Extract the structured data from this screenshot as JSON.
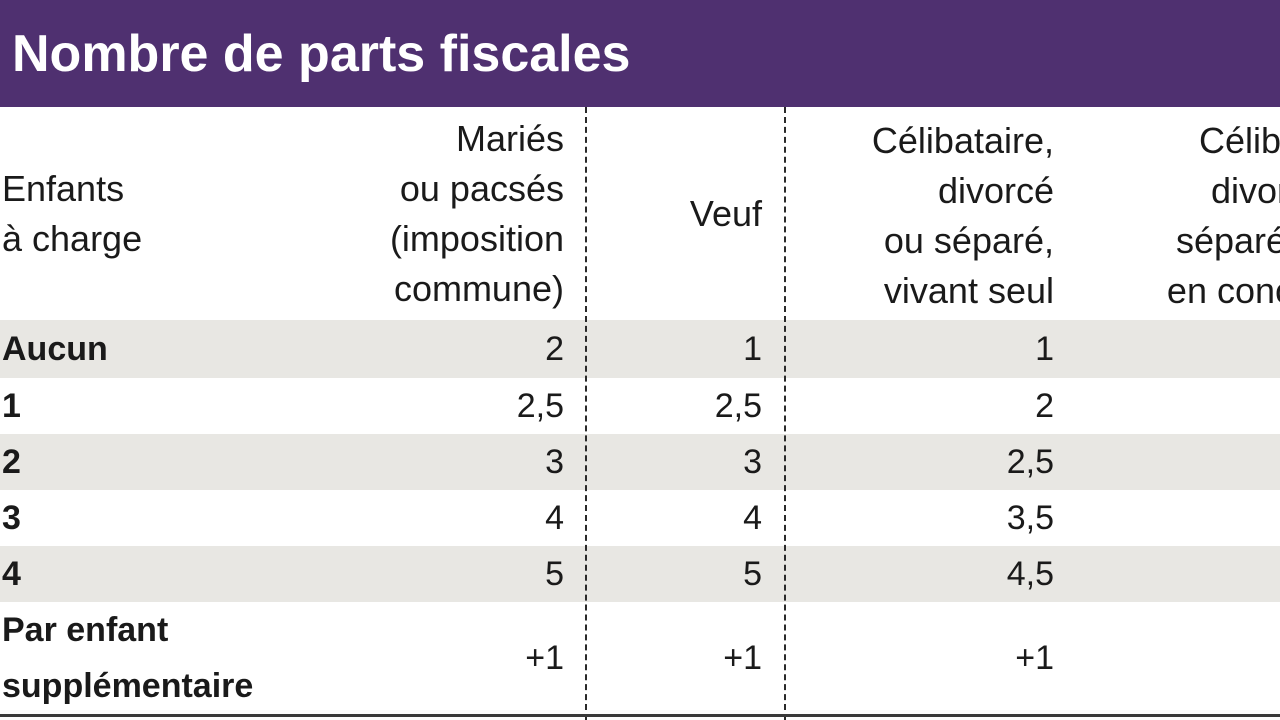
{
  "title": "Nombre de parts fiscales",
  "headers": {
    "enfants": [
      "Enfants",
      "à charge"
    ],
    "maries": [
      "Mariés",
      "ou pacsés",
      "(imposition",
      "commune)"
    ],
    "veuf": [
      "Veuf"
    ],
    "celibataire": [
      "Célibataire,",
      "divorcé",
      "ou séparé,",
      "vivant seul"
    ],
    "concubinage": [
      "Céliba",
      "divor",
      "séparé, v",
      "en concub"
    ]
  },
  "rows": [
    {
      "label": "Aucun",
      "maries": "2",
      "veuf": "1",
      "celibataire": "1"
    },
    {
      "label": "1",
      "maries": "2,5",
      "veuf": "2,5",
      "celibataire": "2"
    },
    {
      "label": "2",
      "maries": "3",
      "veuf": "3",
      "celibataire": "2,5"
    },
    {
      "label": "3",
      "maries": "4",
      "veuf": "4",
      "celibataire": "3,5"
    },
    {
      "label": "4",
      "maries": "5",
      "veuf": "5",
      "celibataire": "4,5"
    },
    {
      "label_lines": [
        "Par enfant",
        "supplémentaire"
      ],
      "maries": "+1",
      "veuf": "+1",
      "celibataire": "+1"
    }
  ],
  "colors": {
    "title_bar": "#4f3070",
    "row_shade": "#e8e7e3"
  }
}
